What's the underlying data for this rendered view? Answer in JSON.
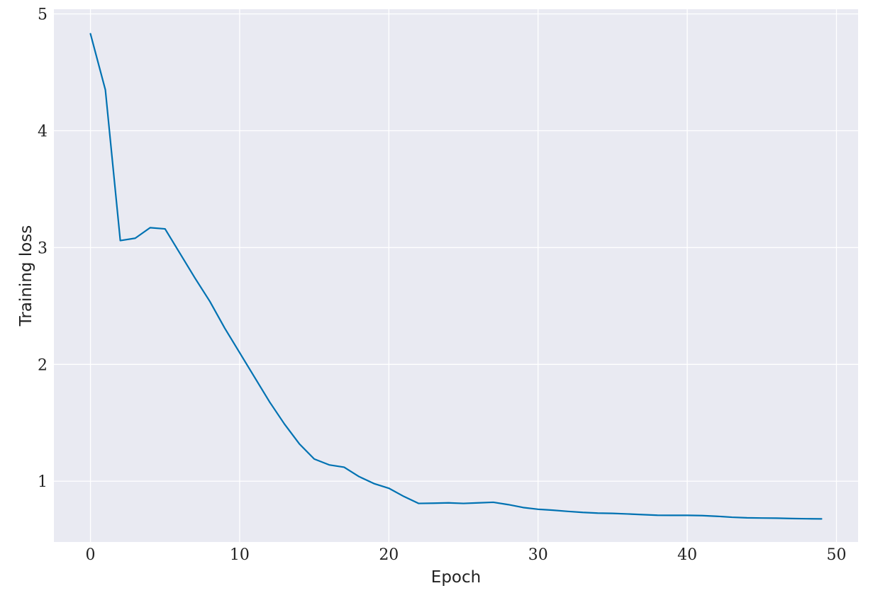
{
  "chart_data": {
    "type": "line",
    "title": "",
    "xlabel": "Epoch",
    "ylabel": "Training loss",
    "xlim": [
      -2.45,
      51.45
    ],
    "ylim": [
      0.48,
      5.04
    ],
    "xticks": [
      0,
      10,
      20,
      30,
      40,
      50
    ],
    "yticks": [
      1,
      2,
      3,
      4,
      5
    ],
    "grid": true,
    "legend": "none",
    "colors": {
      "background": "#e9eaf2",
      "grid": "#ffffff",
      "line": "#0072b2"
    },
    "series": [
      {
        "x": [
          0,
          1,
          2,
          3,
          4,
          5,
          6,
          7,
          8,
          9,
          10,
          11,
          12,
          13,
          14,
          15,
          16,
          17,
          18,
          19,
          20,
          21,
          22,
          23,
          24,
          25,
          26,
          27,
          28,
          29,
          30,
          31,
          32,
          33,
          34,
          35,
          36,
          37,
          38,
          39,
          40,
          41,
          42,
          43,
          44,
          45,
          46,
          47,
          48,
          49
        ],
        "values": [
          4.83,
          4.35,
          3.06,
          3.08,
          3.17,
          3.16,
          2.95,
          2.74,
          2.54,
          2.31,
          2.1,
          1.89,
          1.68,
          1.49,
          1.32,
          1.19,
          1.14,
          1.12,
          1.04,
          0.98,
          0.94,
          0.87,
          0.81,
          0.812,
          0.815,
          0.81,
          0.815,
          0.82,
          0.8,
          0.775,
          0.76,
          0.752,
          0.742,
          0.733,
          0.727,
          0.725,
          0.72,
          0.714,
          0.709,
          0.708,
          0.708,
          0.706,
          0.7,
          0.692,
          0.687,
          0.685,
          0.684,
          0.681,
          0.679,
          0.678
        ]
      }
    ]
  }
}
